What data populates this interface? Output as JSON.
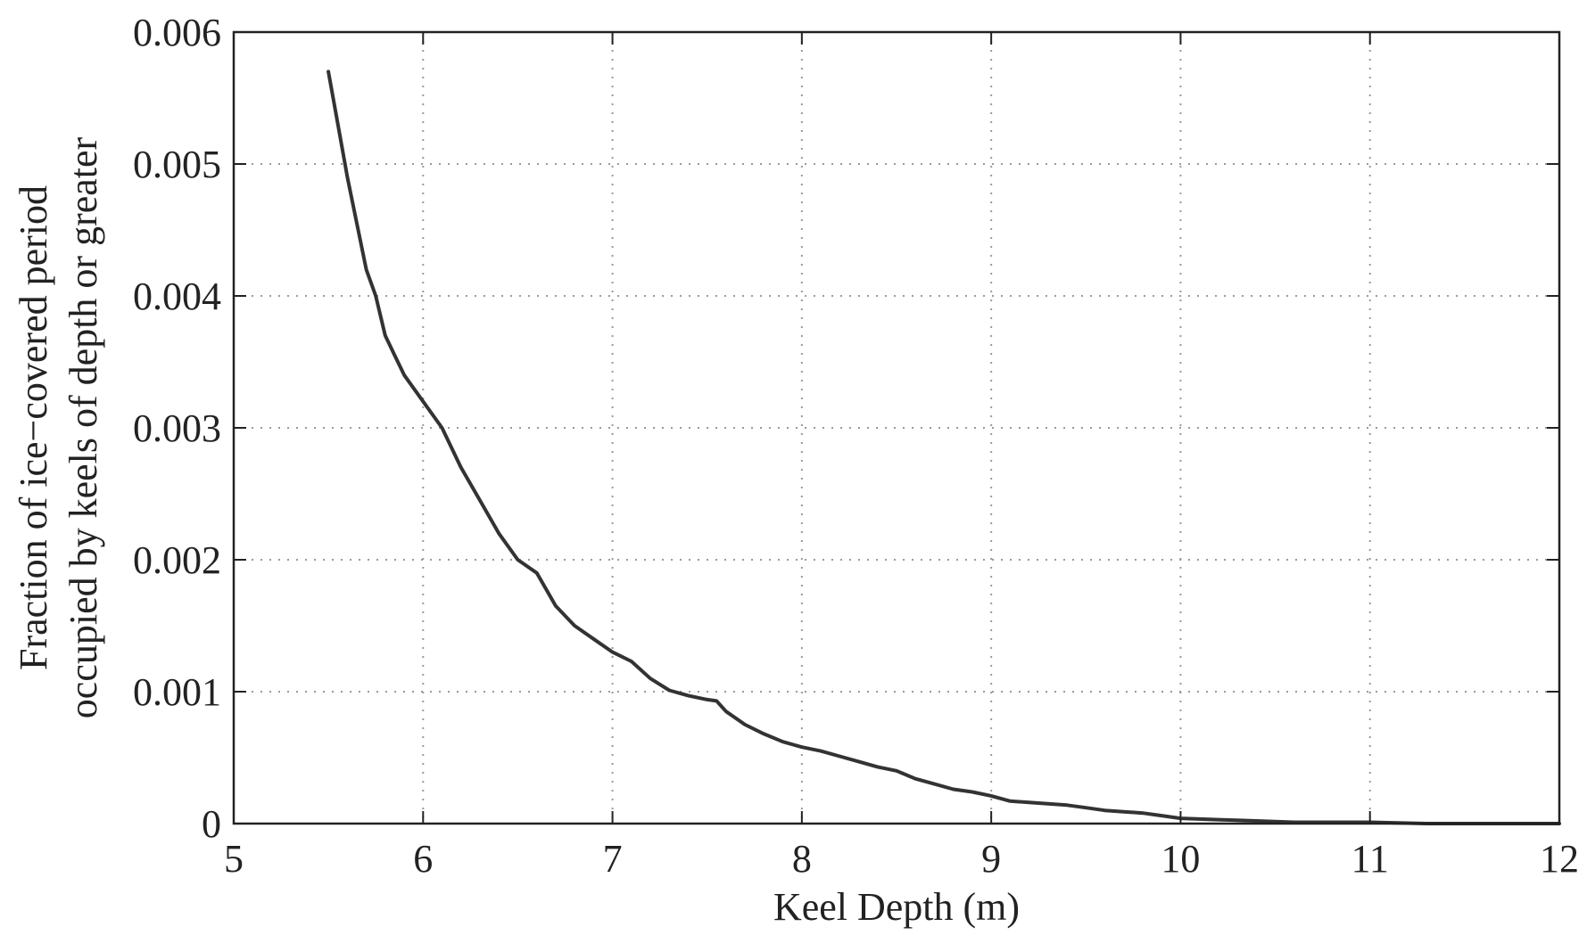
{
  "chart_data": {
    "type": "line",
    "title": "",
    "xlabel": "Keel Depth (m)",
    "ylabel_line1": "Fraction of ice−covered period",
    "ylabel_line2": "occupied by keels of depth or greater",
    "xlim": [
      5,
      12
    ],
    "ylim": [
      0,
      0.006
    ],
    "grid": true,
    "xticks": [
      5,
      6,
      7,
      8,
      9,
      10,
      11,
      12
    ],
    "xtick_labels": [
      "5",
      "6",
      "7",
      "8",
      "9",
      "10",
      "11",
      "12"
    ],
    "yticks": [
      0,
      0.001,
      0.002,
      0.003,
      0.004,
      0.005,
      0.006
    ],
    "ytick_labels": [
      "0",
      "0.001",
      "0.002",
      "0.003",
      "0.004",
      "0.005",
      "0.006"
    ],
    "colors": {
      "line": "#333333",
      "axes": "#222222",
      "grid": "#9a9a9a"
    },
    "series": [
      {
        "x": [
          5.5,
          5.55,
          5.6,
          5.65,
          5.7,
          5.75,
          5.8,
          5.85,
          5.9,
          6.0,
          6.1,
          6.2,
          6.3,
          6.4,
          6.5,
          6.6,
          6.7,
          6.8,
          6.9,
          7.0,
          7.1,
          7.2,
          7.3,
          7.4,
          7.5,
          7.55,
          7.6,
          7.7,
          7.8,
          7.9,
          8.0,
          8.1,
          8.2,
          8.3,
          8.4,
          8.5,
          8.6,
          8.7,
          8.8,
          8.9,
          9.0,
          9.1,
          9.2,
          9.3,
          9.4,
          9.5,
          9.6,
          9.7,
          9.8,
          9.9,
          10.0,
          10.2,
          10.4,
          10.6,
          10.8,
          11.0,
          11.3,
          11.6,
          12.0
        ],
        "y": [
          0.0057,
          0.0053,
          0.0049,
          0.00455,
          0.0042,
          0.004,
          0.0037,
          0.00355,
          0.0034,
          0.0032,
          0.003,
          0.0027,
          0.00245,
          0.0022,
          0.002,
          0.0019,
          0.00165,
          0.0015,
          0.0014,
          0.0013,
          0.00123,
          0.0011,
          0.00101,
          0.00097,
          0.00094,
          0.00093,
          0.00085,
          0.00075,
          0.00068,
          0.00062,
          0.00058,
          0.00055,
          0.00051,
          0.00047,
          0.00043,
          0.0004,
          0.00034,
          0.0003,
          0.00026,
          0.00024,
          0.00021,
          0.00017,
          0.00016,
          0.00015,
          0.00014,
          0.00012,
          0.0001,
          9e-05,
          8e-05,
          6e-05,
          4e-05,
          3e-05,
          2e-05,
          1e-05,
          1e-05,
          1e-05,
          0.0,
          0.0,
          0.0
        ]
      }
    ]
  }
}
